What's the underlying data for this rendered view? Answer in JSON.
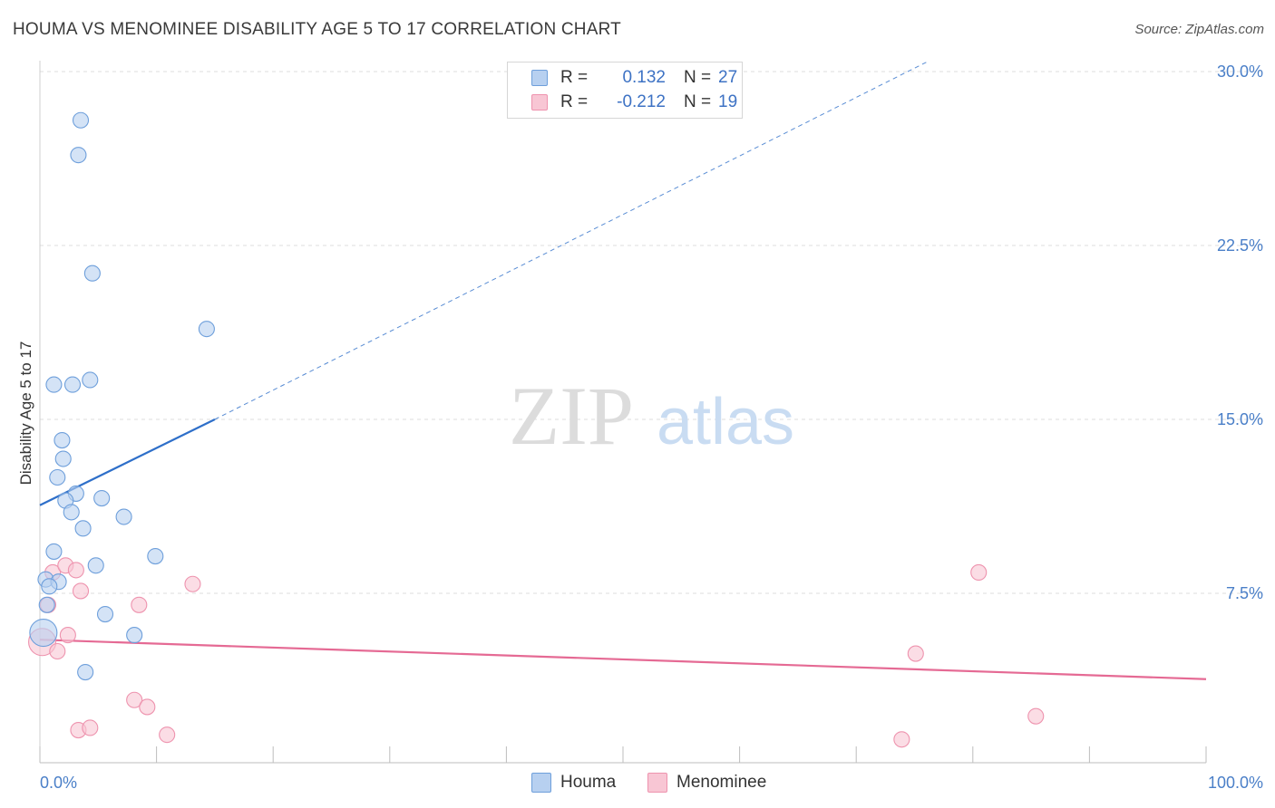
{
  "header": {
    "title": "HOUMA VS MENOMINEE DISABILITY AGE 5 TO 17 CORRELATION CHART",
    "source": "Source: ZipAtlas.com"
  },
  "watermark": {
    "zip": "ZIP",
    "atlas": "atlas"
  },
  "legend": {
    "rows": [
      {
        "r_label": "R =",
        "r_value": "0.132",
        "n_label": "N =",
        "n_value": "27"
      },
      {
        "r_label": "R =",
        "r_value": "-0.212",
        "n_label": "N =",
        "n_value": "19"
      }
    ]
  },
  "bottom_legend": {
    "houma": "Houma",
    "menominee": "Menominee"
  },
  "colors": {
    "houma_fill": "#b7d0f0",
    "houma_stroke": "#6e9fdb",
    "houma_line": "#2e6fc9",
    "menominee_fill": "#f8c6d4",
    "menominee_stroke": "#ee93ae",
    "menominee_line": "#e56a94",
    "grid": "#dcdcdc",
    "tick_text": "#4a7fc8"
  },
  "chart_data": {
    "type": "scatter",
    "title": "HOUMA VS MENOMINEE DISABILITY AGE 5 TO 17 CORRELATION CHART",
    "xlabel": "",
    "ylabel": "Disability Age 5 to 17",
    "xlim": [
      0,
      100
    ],
    "ylim": [
      0,
      31
    ],
    "x_tick_labels": [
      "0.0%",
      "100.0%"
    ],
    "y_ticks": [
      7.5,
      15.0,
      22.5,
      30.0
    ],
    "y_tick_labels": [
      "7.5%",
      "15.0%",
      "22.5%",
      "30.0%"
    ],
    "grid": true,
    "legend_position": "top-center",
    "series": [
      {
        "name": "Houma",
        "r": 0.132,
        "n": 27,
        "trend": {
          "x": [
            0,
            15
          ],
          "y": [
            11.3,
            15.0
          ],
          "extend_to_x": 76,
          "extend_to_y": 30.4
        },
        "points": [
          {
            "x": 3.5,
            "y": 27.9
          },
          {
            "x": 3.3,
            "y": 26.4
          },
          {
            "x": 4.5,
            "y": 21.3
          },
          {
            "x": 14.3,
            "y": 18.9
          },
          {
            "x": 1.2,
            "y": 16.5
          },
          {
            "x": 2.8,
            "y": 16.5
          },
          {
            "x": 4.3,
            "y": 16.7
          },
          {
            "x": 1.9,
            "y": 14.1
          },
          {
            "x": 2.0,
            "y": 13.3
          },
          {
            "x": 1.5,
            "y": 12.5
          },
          {
            "x": 3.1,
            "y": 11.8
          },
          {
            "x": 2.2,
            "y": 11.5
          },
          {
            "x": 5.3,
            "y": 11.6
          },
          {
            "x": 2.7,
            "y": 11.0
          },
          {
            "x": 7.2,
            "y": 10.8
          },
          {
            "x": 3.7,
            "y": 10.3
          },
          {
            "x": 1.2,
            "y": 9.3
          },
          {
            "x": 9.9,
            "y": 9.1
          },
          {
            "x": 4.8,
            "y": 8.7
          },
          {
            "x": 0.5,
            "y": 8.1
          },
          {
            "x": 1.6,
            "y": 8.0
          },
          {
            "x": 0.8,
            "y": 7.8
          },
          {
            "x": 0.6,
            "y": 7.0
          },
          {
            "x": 5.6,
            "y": 6.6
          },
          {
            "x": 0.3,
            "y": 5.8
          },
          {
            "x": 8.1,
            "y": 5.7
          },
          {
            "x": 3.9,
            "y": 4.1
          }
        ]
      },
      {
        "name": "Menominee",
        "r": -0.212,
        "n": 19,
        "trend": {
          "x": [
            0,
            100
          ],
          "y": [
            5.5,
            3.8
          ]
        },
        "points": [
          {
            "x": 0.2,
            "y": 5.4
          },
          {
            "x": 0.7,
            "y": 7.0
          },
          {
            "x": 1.1,
            "y": 8.4
          },
          {
            "x": 2.2,
            "y": 8.7
          },
          {
            "x": 3.1,
            "y": 8.5
          },
          {
            "x": 3.5,
            "y": 7.6
          },
          {
            "x": 2.4,
            "y": 5.7
          },
          {
            "x": 1.5,
            "y": 5.0
          },
          {
            "x": 13.1,
            "y": 7.9
          },
          {
            "x": 8.5,
            "y": 7.0
          },
          {
            "x": 8.1,
            "y": 2.9
          },
          {
            "x": 9.2,
            "y": 2.6
          },
          {
            "x": 3.3,
            "y": 1.6
          },
          {
            "x": 4.3,
            "y": 1.7
          },
          {
            "x": 10.9,
            "y": 1.4
          },
          {
            "x": 80.5,
            "y": 8.4
          },
          {
            "x": 75.1,
            "y": 4.9
          },
          {
            "x": 85.4,
            "y": 2.2
          },
          {
            "x": 73.9,
            "y": 1.2
          }
        ]
      }
    ]
  }
}
